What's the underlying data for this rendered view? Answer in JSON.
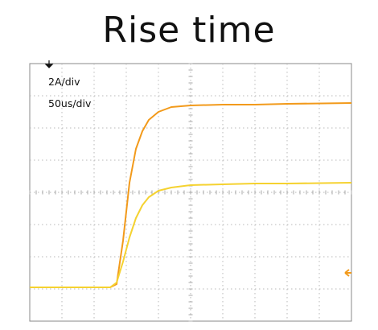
{
  "title": "Rise time",
  "chart_data": {
    "type": "line",
    "title": "Rise time",
    "xlabel": "",
    "ylabel": "",
    "scale_labels": [
      "2A/div",
      "50us/div"
    ],
    "grid": true,
    "divisions": {
      "x": 10,
      "y": 8
    },
    "xlim": [
      0,
      500
    ],
    "ylim": [
      -8,
      8
    ],
    "x_units": "us",
    "y_units": "A",
    "trigger_marker_x": 30,
    "series": [
      {
        "color": "#f29a1b",
        "values": [
          [
            0,
            -5.9
          ],
          [
            50,
            -5.9
          ],
          [
            100,
            -5.9
          ],
          [
            125,
            -5.9
          ],
          [
            135,
            -5.7
          ],
          [
            145,
            -3.0
          ],
          [
            155,
            0.6
          ],
          [
            165,
            2.7
          ],
          [
            175,
            3.8
          ],
          [
            185,
            4.5
          ],
          [
            200,
            5.0
          ],
          [
            220,
            5.3
          ],
          [
            250,
            5.4
          ],
          [
            300,
            5.45
          ],
          [
            350,
            5.45
          ],
          [
            400,
            5.5
          ],
          [
            500,
            5.55
          ]
        ]
      },
      {
        "color": "#f5d230",
        "values": [
          [
            0,
            -5.9
          ],
          [
            50,
            -5.9
          ],
          [
            100,
            -5.9
          ],
          [
            125,
            -5.9
          ],
          [
            135,
            -5.6
          ],
          [
            145,
            -4.3
          ],
          [
            155,
            -2.8
          ],
          [
            165,
            -1.6
          ],
          [
            175,
            -0.8
          ],
          [
            185,
            -0.3
          ],
          [
            200,
            0.1
          ],
          [
            220,
            0.3
          ],
          [
            250,
            0.45
          ],
          [
            300,
            0.5
          ],
          [
            350,
            0.55
          ],
          [
            400,
            0.55
          ],
          [
            500,
            0.6
          ]
        ]
      }
    ],
    "ground_marker_color": "#f29a1b",
    "ground_marker_y": -5
  }
}
